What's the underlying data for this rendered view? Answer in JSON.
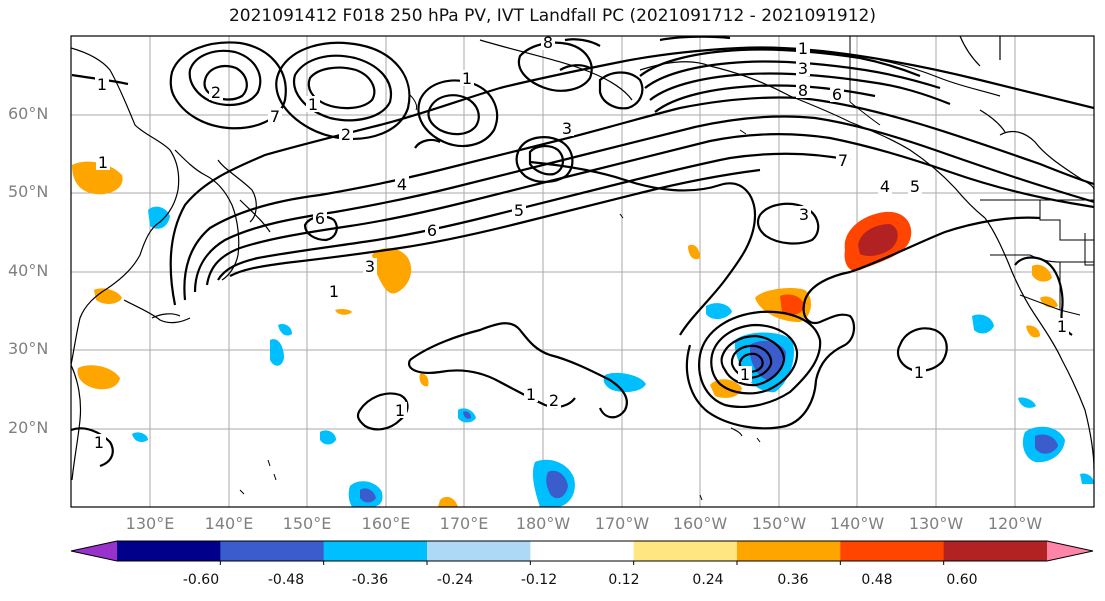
{
  "title": "2021091412 F018 250 hPa PV, IVT Landfall PC (2021091712 - 2021091912)",
  "lat_labels": [
    "60°N",
    "50°N",
    "40°N",
    "30°N",
    "20°N"
  ],
  "lon_labels": [
    "130°E",
    "140°E",
    "150°E",
    "160°E",
    "170°E",
    "180°W",
    "170°W",
    "160°W",
    "150°W",
    "140°W",
    "130°W",
    "120°W"
  ],
  "colorbar": {
    "ticks": [
      "-0.60",
      "-0.48",
      "-0.36",
      "-0.24",
      "-0.12",
      "0.12",
      "0.24",
      "0.36",
      "0.48",
      "0.60"
    ],
    "colors": [
      "#9932cc",
      "#00008b",
      "#3a5ccc",
      "#00bfff",
      "#add8f6",
      "#ffffff",
      "#ffe680",
      "#ffa500",
      "#ff4500",
      "#b22222",
      "#ff85a8"
    ]
  },
  "contour_labels": [
    "1",
    "2",
    "3",
    "4",
    "5",
    "6",
    "7",
    "8"
  ]
}
